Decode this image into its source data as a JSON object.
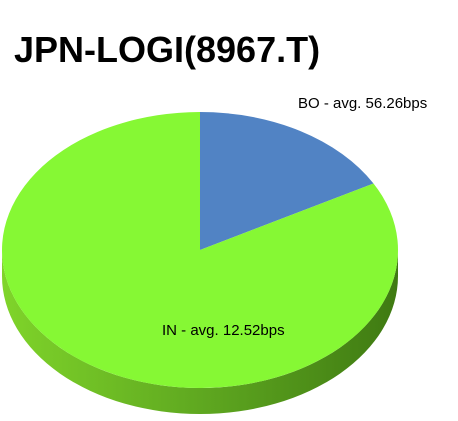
{
  "chart_data": {
    "type": "pie3d",
    "title": "JPN-LOGI(8967.T)",
    "categories": [
      "BO - avg. 56.26bps",
      "IN - avg. 12.52bps"
    ],
    "values": [
      17,
      83
    ],
    "colors": [
      "#5183c4",
      "#86f834"
    ],
    "side_color": "#5fa820"
  }
}
